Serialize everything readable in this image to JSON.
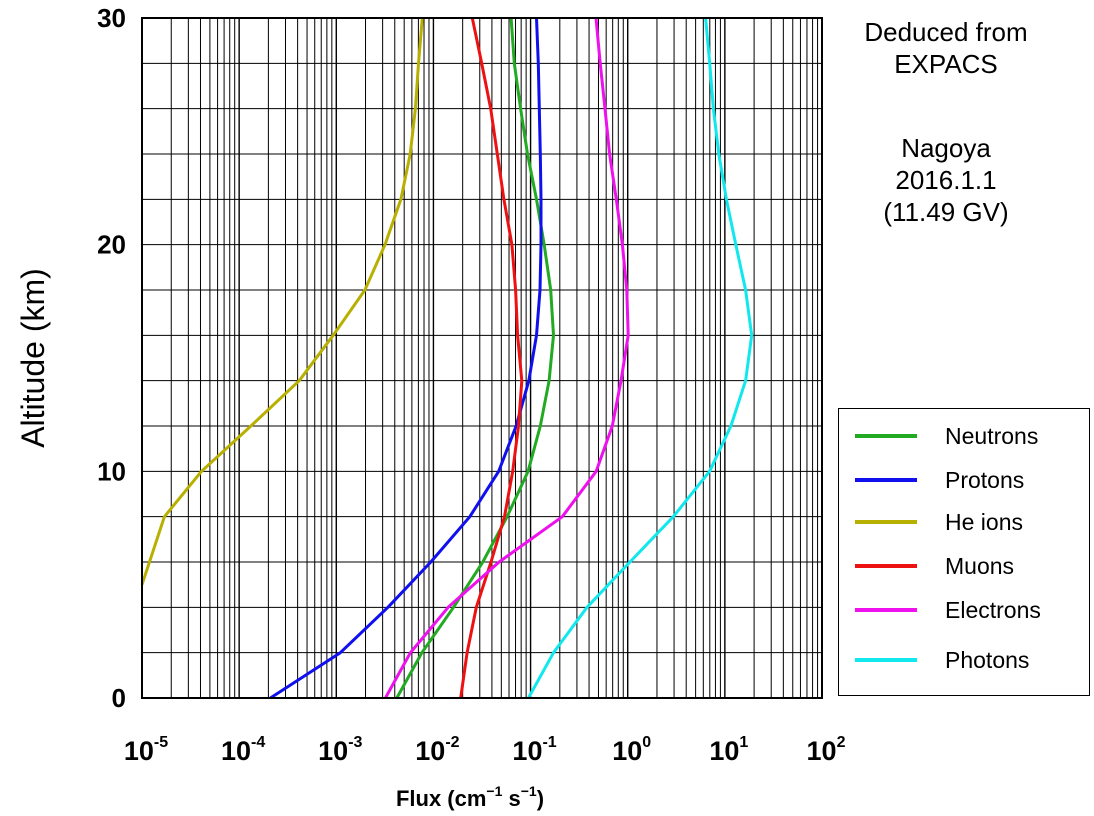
{
  "chart_data": {
    "type": "line",
    "xlabel_base": "Flux (cm",
    "xlabel_exp1": "−1",
    "xlabel_mid": " s",
    "xlabel_exp2": "−1",
    "xlabel_end": ")",
    "ylabel": "Altitude (km)",
    "x_scale": "log",
    "xlim": [
      1e-05,
      100
    ],
    "ylim": [
      0,
      30
    ],
    "x_ticks": [
      {
        "base": "10",
        "exp": "-5",
        "value": 1e-05
      },
      {
        "base": "10",
        "exp": "-4",
        "value": 0.0001
      },
      {
        "base": "10",
        "exp": "-3",
        "value": 0.001
      },
      {
        "base": "10",
        "exp": "-2",
        "value": 0.01
      },
      {
        "base": "10",
        "exp": "-1",
        "value": 0.1
      },
      {
        "base": "10",
        "exp": "0",
        "value": 1
      },
      {
        "base": "10",
        "exp": "1",
        "value": 10
      },
      {
        "base": "10",
        "exp": "2",
        "value": 100
      }
    ],
    "y_ticks": [
      {
        "label": "0",
        "value": 0
      },
      {
        "label": "10",
        "value": 10
      },
      {
        "label": "20",
        "value": 20
      },
      {
        "label": "30",
        "value": 30
      }
    ],
    "y_minor_step": 2,
    "grid": true,
    "legend_position": "right",
    "series": [
      {
        "name": "Neutrons",
        "color": "#22aa22",
        "points": [
          [
            0.0042,
            0
          ],
          [
            0.0076,
            2
          ],
          [
            0.0161,
            4
          ],
          [
            0.0322,
            6
          ],
          [
            0.0573,
            8
          ],
          [
            0.0943,
            10
          ],
          [
            0.126,
            12
          ],
          [
            0.155,
            14
          ],
          [
            0.172,
            16
          ],
          [
            0.161,
            18
          ],
          [
            0.138,
            20
          ],
          [
            0.115,
            22
          ],
          [
            0.093,
            24
          ],
          [
            0.079,
            26
          ],
          [
            0.068,
            28
          ],
          [
            0.063,
            30
          ]
        ]
      },
      {
        "name": "Protons",
        "color": "#1010ee",
        "points": [
          [
            0.00021,
            0
          ],
          [
            0.0011,
            2
          ],
          [
            0.0034,
            4
          ],
          [
            0.0094,
            6
          ],
          [
            0.0237,
            8
          ],
          [
            0.047,
            10
          ],
          [
            0.071,
            12
          ],
          [
            0.096,
            14
          ],
          [
            0.115,
            16
          ],
          [
            0.125,
            18
          ],
          [
            0.128,
            20
          ],
          [
            0.128,
            22
          ],
          [
            0.126,
            24
          ],
          [
            0.123,
            26
          ],
          [
            0.12,
            28
          ],
          [
            0.115,
            30
          ]
        ]
      },
      {
        "name": "He ions",
        "color": "#b8b000",
        "points": [
          [
            1e-05,
            5
          ],
          [
            1.7e-05,
            8
          ],
          [
            4.1e-05,
            10
          ],
          [
            0.000132,
            12
          ],
          [
            0.000415,
            14
          ],
          [
            0.00093,
            16
          ],
          [
            0.00197,
            18
          ],
          [
            0.00317,
            20
          ],
          [
            0.00462,
            22
          ],
          [
            0.00576,
            24
          ],
          [
            0.00653,
            26
          ],
          [
            0.00702,
            28
          ],
          [
            0.00768,
            30
          ]
        ]
      },
      {
        "name": "Muons",
        "color": "#ee1111",
        "points": [
          [
            0.0191,
            0
          ],
          [
            0.0222,
            2
          ],
          [
            0.0276,
            4
          ],
          [
            0.0391,
            6
          ],
          [
            0.0539,
            8
          ],
          [
            0.0654,
            10
          ],
          [
            0.0751,
            12
          ],
          [
            0.0813,
            14
          ],
          [
            0.0735,
            16
          ],
          [
            0.0702,
            18
          ],
          [
            0.0643,
            20
          ],
          [
            0.0532,
            22
          ],
          [
            0.0455,
            24
          ],
          [
            0.0389,
            26
          ],
          [
            0.0314,
            28
          ],
          [
            0.0251,
            30
          ]
        ]
      },
      {
        "name": "Electrons",
        "color": "#ee11ee",
        "points": [
          [
            0.0032,
            0
          ],
          [
            0.0058,
            2
          ],
          [
            0.0142,
            4
          ],
          [
            0.0474,
            6
          ],
          [
            0.2123,
            8
          ],
          [
            0.4741,
            10
          ],
          [
            0.6946,
            12
          ],
          [
            0.8523,
            14
          ],
          [
            1.012,
            16
          ],
          [
            0.9781,
            18
          ],
          [
            0.8819,
            20
          ],
          [
            0.7627,
            22
          ],
          [
            0.6514,
            24
          ],
          [
            0.5831,
            26
          ],
          [
            0.5211,
            28
          ],
          [
            0.4711,
            30
          ]
        ]
      },
      {
        "name": "Photons",
        "color": "#11e8ee",
        "points": [
          [
            0.095,
            0
          ],
          [
            0.172,
            2
          ],
          [
            0.381,
            4
          ],
          [
            1.052,
            6
          ],
          [
            2.943,
            8
          ],
          [
            6.972,
            10
          ],
          [
            11.54,
            12
          ],
          [
            16.34,
            14
          ],
          [
            18.91,
            16
          ],
          [
            16.34,
            18
          ],
          [
            12.97,
            20
          ],
          [
            10.38,
            22
          ],
          [
            8.66,
            24
          ],
          [
            7.63,
            26
          ],
          [
            6.98,
            28
          ],
          [
            6.33,
            30
          ]
        ]
      }
    ]
  },
  "info": {
    "line1": "Deduced from",
    "line2": "EXPACS",
    "line3": "Nagoya",
    "line4": "2016.1.1",
    "line5": "(11.49 GV)"
  },
  "legend": [
    {
      "label": "Neutrons",
      "color": "#22aa22"
    },
    {
      "label": "Protons",
      "color": "#1010ee"
    },
    {
      "label": "He ions",
      "color": "#b8b000"
    },
    {
      "label": "Muons",
      "color": "#ee1111"
    },
    {
      "label": "Electrons",
      "color": "#ee11ee"
    },
    {
      "label": "Photons",
      "color": "#11e8ee"
    }
  ]
}
